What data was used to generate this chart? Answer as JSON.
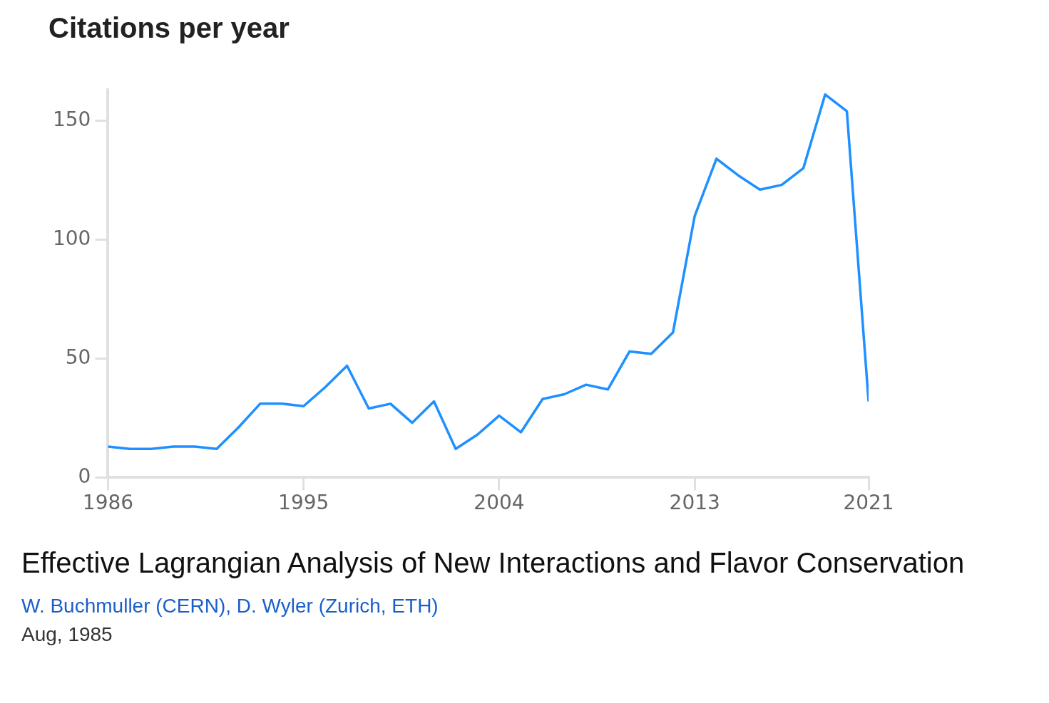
{
  "chart_data": {
    "type": "line",
    "title": "Citations per year",
    "x": [
      1986,
      1987,
      1988,
      1989,
      1990,
      1991,
      1992,
      1993,
      1994,
      1995,
      1996,
      1997,
      1998,
      1999,
      2000,
      2001,
      2002,
      2003,
      2004,
      2005,
      2006,
      2007,
      2008,
      2009,
      2010,
      2011,
      2012,
      2013,
      2014,
      2015,
      2016,
      2017,
      2018,
      2019,
      2020,
      2021
    ],
    "series": [
      {
        "color": "#1e90ff",
        "values": [
          13,
          12,
          12,
          13,
          13,
          12,
          21,
          31,
          31,
          30,
          38,
          47,
          29,
          31,
          23,
          32,
          12,
          18,
          26,
          19,
          33,
          35,
          39,
          37,
          53,
          52,
          61,
          110,
          134,
          127,
          121,
          123,
          130,
          161,
          154,
          32
        ]
      }
    ],
    "xlim": [
      1986,
      2021
    ],
    "xticks": [
      1986,
      1995,
      2004,
      2013,
      2021
    ],
    "ylim": [
      0,
      163
    ],
    "yticks": [
      0,
      50,
      100,
      150
    ],
    "grid": false,
    "legend": false,
    "marker": "none",
    "line_style": "solid",
    "annotations": [
      "Effective Lagrangian Analysis of New Interactions and Flavor Conservation",
      "W. Buchmuller (CERN), D. Wyler (Zurich, ETH)",
      "Aug, 1985"
    ]
  }
}
